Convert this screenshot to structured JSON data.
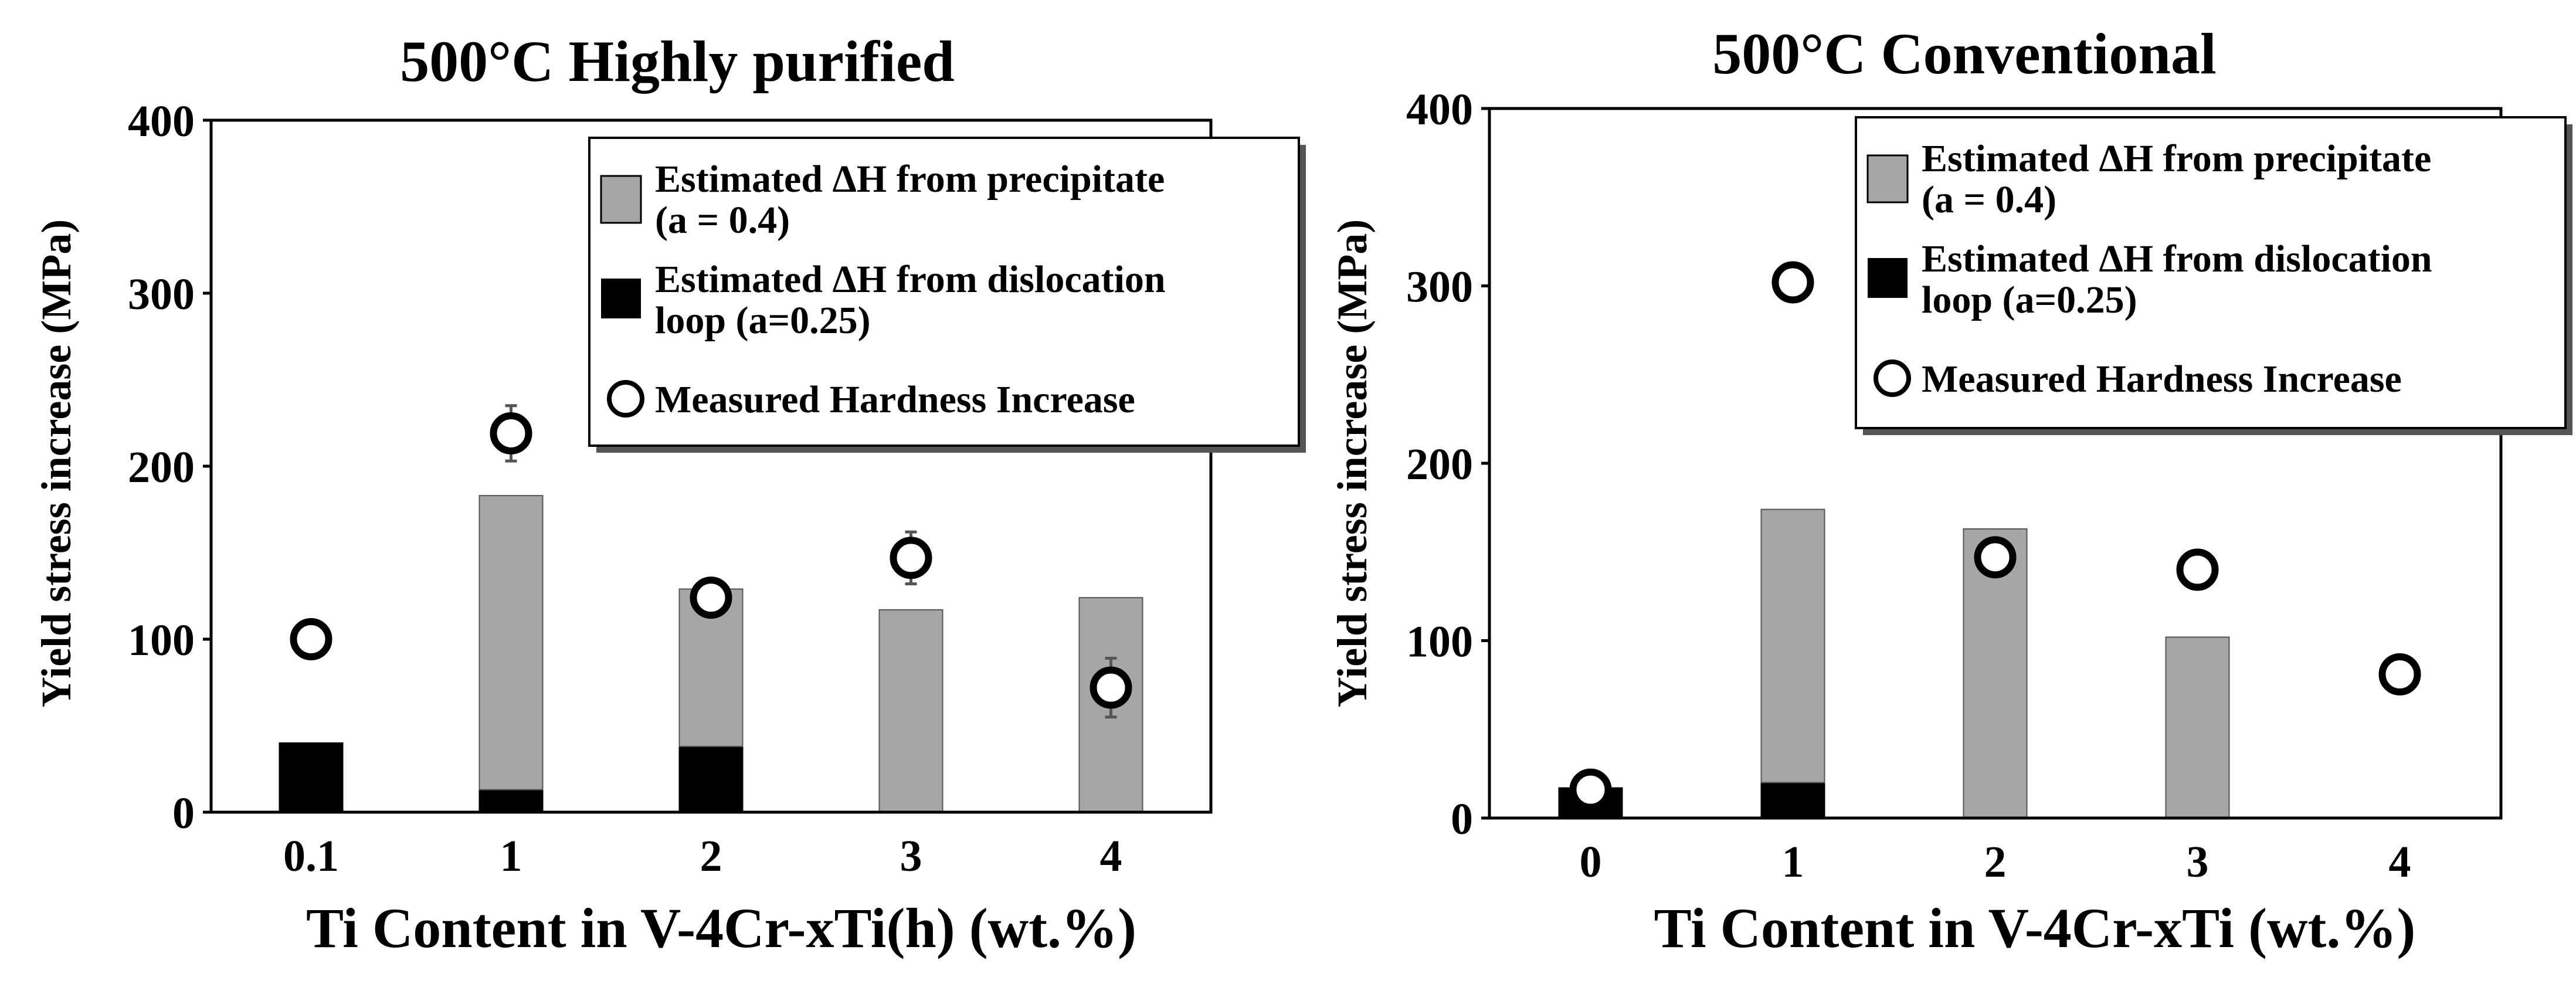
{
  "chart_data": [
    {
      "type": "bar",
      "title": "500°C Highly purified",
      "xlabel": "Ti Content in V-4Cr-xTi(h) (wt.%)",
      "ylabel": "Yield stress increase (MPa)",
      "ylim": [
        0,
        400
      ],
      "yticks": [
        "0",
        "100",
        "200",
        "300",
        "400"
      ],
      "categories": [
        "0.1",
        "1",
        "2",
        "3",
        "4"
      ],
      "series": [
        {
          "name": "Estimated ΔH from dislocation loop (a=0.25)",
          "color": "#000000",
          "values": [
            40,
            13,
            38,
            0,
            0
          ]
        },
        {
          "name": "Estimated ΔH from precipitate (a = 0.4)",
          "color": "#a6a6a6",
          "values": [
            0,
            170,
            91,
            117,
            124
          ]
        }
      ],
      "measured": {
        "name": "Measured Hardness Increase",
        "values": [
          100,
          219,
          124,
          147,
          72
        ],
        "errors": [
          null,
          16,
          null,
          15,
          17
        ]
      },
      "legend": [
        {
          "label_line1": "Estimated ΔH from precipitate",
          "label_line2": "(a = 0.4)"
        },
        {
          "label_line1": "Estimated ΔH from dislocation",
          "label_line2": "loop (a=0.25)"
        },
        {
          "label_line1": "Measured Hardness Increase",
          "label_line2": ""
        }
      ],
      "legend_position": "top-right"
    },
    {
      "type": "bar",
      "title": "500°C Conventional",
      "xlabel": "Ti Content in V-4Cr-xTi (wt.%)",
      "ylabel": "Yield stress increase (MPa)",
      "ylim": [
        0,
        400
      ],
      "yticks": [
        "0",
        "100",
        "200",
        "300",
        "400"
      ],
      "categories": [
        "0",
        "1",
        "2",
        "3",
        "4"
      ],
      "series": [
        {
          "name": "Estimated ΔH from dislocation loop (a=0.25)",
          "color": "#000000",
          "values": [
            17,
            20,
            0,
            0,
            0
          ]
        },
        {
          "name": "Estimated ΔH from precipitate (a = 0.4)",
          "color": "#a6a6a6",
          "values": [
            0,
            154,
            163,
            102,
            0
          ]
        }
      ],
      "measured": {
        "name": "Measured Hardness Increase",
        "values": [
          16,
          302,
          147,
          140,
          81
        ],
        "errors": [
          null,
          null,
          null,
          null,
          null
        ]
      },
      "legend": [
        {
          "label_line1": "Estimated ΔH from precipitate",
          "label_line2": "(a = 0.4)"
        },
        {
          "label_line1": "Estimated ΔH from dislocation",
          "label_line2": "loop (a=0.25)"
        },
        {
          "label_line1": "Measured Hardness Increase",
          "label_line2": ""
        }
      ],
      "legend_position": "top-right"
    }
  ]
}
